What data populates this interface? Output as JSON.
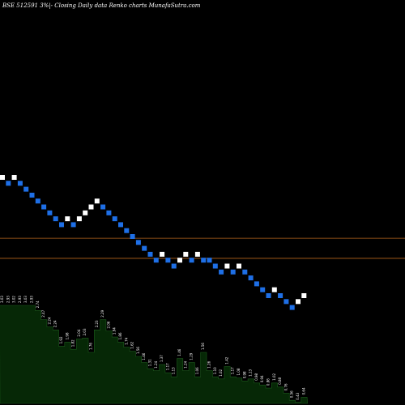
{
  "chart_data": {
    "type": "renko",
    "title": "BSE 512591 3%|- Closing Daily data Renko charts MunafaSutra.com",
    "colors": {
      "background": "#000000",
      "up_brick": "#ffffff",
      "down_brick": "#1e6fe6",
      "reference_line": "#b5651d",
      "volume_area": "#062806"
    },
    "bricks": [
      {
        "i": 0,
        "lvl": 0,
        "dir": "up"
      },
      {
        "i": 1,
        "lvl": 1,
        "dir": "down"
      },
      {
        "i": 2,
        "lvl": 0,
        "dir": "up"
      },
      {
        "i": 3,
        "lvl": 1,
        "dir": "down"
      },
      {
        "i": 4,
        "lvl": 2,
        "dir": "down"
      },
      {
        "i": 5,
        "lvl": 3,
        "dir": "down"
      },
      {
        "i": 6,
        "lvl": 4,
        "dir": "down"
      },
      {
        "i": 7,
        "lvl": 5,
        "dir": "down"
      },
      {
        "i": 8,
        "lvl": 6,
        "dir": "down"
      },
      {
        "i": 9,
        "lvl": 7,
        "dir": "down"
      },
      {
        "i": 10,
        "lvl": 8,
        "dir": "down"
      },
      {
        "i": 11,
        "lvl": 7,
        "dir": "up"
      },
      {
        "i": 12,
        "lvl": 8,
        "dir": "down"
      },
      {
        "i": 13,
        "lvl": 7,
        "dir": "up"
      },
      {
        "i": 14,
        "lvl": 6,
        "dir": "up"
      },
      {
        "i": 15,
        "lvl": 5,
        "dir": "up"
      },
      {
        "i": 16,
        "lvl": 4,
        "dir": "up"
      },
      {
        "i": 17,
        "lvl": 5,
        "dir": "down"
      },
      {
        "i": 18,
        "lvl": 6,
        "dir": "down"
      },
      {
        "i": 19,
        "lvl": 7,
        "dir": "down"
      },
      {
        "i": 20,
        "lvl": 8,
        "dir": "down"
      },
      {
        "i": 21,
        "lvl": 9,
        "dir": "down"
      },
      {
        "i": 22,
        "lvl": 10,
        "dir": "down"
      },
      {
        "i": 23,
        "lvl": 11,
        "dir": "down"
      },
      {
        "i": 24,
        "lvl": 12,
        "dir": "down"
      },
      {
        "i": 25,
        "lvl": 13,
        "dir": "down"
      },
      {
        "i": 26,
        "lvl": 14,
        "dir": "down"
      },
      {
        "i": 27,
        "lvl": 13,
        "dir": "up"
      },
      {
        "i": 28,
        "lvl": 14,
        "dir": "down"
      },
      {
        "i": 29,
        "lvl": 15,
        "dir": "down"
      },
      {
        "i": 30,
        "lvl": 14,
        "dir": "up"
      },
      {
        "i": 31,
        "lvl": 13,
        "dir": "up"
      },
      {
        "i": 32,
        "lvl": 14,
        "dir": "down"
      },
      {
        "i": 33,
        "lvl": 13,
        "dir": "up"
      },
      {
        "i": 34,
        "lvl": 14,
        "dir": "down"
      },
      {
        "i": 35,
        "lvl": 14,
        "dir": "down"
      },
      {
        "i": 36,
        "lvl": 15,
        "dir": "down"
      },
      {
        "i": 37,
        "lvl": 16,
        "dir": "down"
      },
      {
        "i": 38,
        "lvl": 15,
        "dir": "up"
      },
      {
        "i": 39,
        "lvl": 16,
        "dir": "down"
      },
      {
        "i": 40,
        "lvl": 15,
        "dir": "up"
      },
      {
        "i": 41,
        "lvl": 16,
        "dir": "down"
      },
      {
        "i": 42,
        "lvl": 17,
        "dir": "down"
      },
      {
        "i": 43,
        "lvl": 18,
        "dir": "down"
      },
      {
        "i": 44,
        "lvl": 19,
        "dir": "down"
      },
      {
        "i": 45,
        "lvl": 20,
        "dir": "down"
      },
      {
        "i": 46,
        "lvl": 19,
        "dir": "up"
      },
      {
        "i": 47,
        "lvl": 20,
        "dir": "down"
      },
      {
        "i": 48,
        "lvl": 21,
        "dir": "down"
      },
      {
        "i": 49,
        "lvl": 22,
        "dir": "down"
      },
      {
        "i": 50,
        "lvl": 21,
        "dir": "up"
      },
      {
        "i": 51,
        "lvl": 20,
        "dir": "up"
      }
    ],
    "volume_labels": [
      {
        "i": 0,
        "text": "3.03",
        "v": 0.96
      },
      {
        "i": 1,
        "text": "2.93",
        "v": 0.96
      },
      {
        "i": 2,
        "text": "3.02",
        "v": 0.96
      },
      {
        "i": 3,
        "text": "2.93",
        "v": 0.96
      },
      {
        "i": 4,
        "text": "3.03",
        "v": 0.96
      },
      {
        "i": 5,
        "text": "2.93",
        "v": 0.96
      },
      {
        "i": 6,
        "text": "2.74",
        "v": 0.91
      },
      {
        "i": 7,
        "text": "2.47",
        "v": 0.82
      },
      {
        "i": 8,
        "text": "2.24",
        "v": 0.75
      },
      {
        "i": 9,
        "text": "2.24",
        "v": 0.72
      },
      {
        "i": 10,
        "text": "1.92",
        "v": 0.56
      },
      {
        "i": 11,
        "text": "1.98",
        "v": 0.6
      },
      {
        "i": 12,
        "text": "1.82",
        "v": 0.53
      },
      {
        "i": 13,
        "text": "2.04",
        "v": 0.63
      },
      {
        "i": 14,
        "text": "2.03",
        "v": 0.64
      },
      {
        "i": 15,
        "text": "1.76",
        "v": 0.5
      },
      {
        "i": 16,
        "text": "2.23",
        "v": 0.72
      },
      {
        "i": 17,
        "text": "2.29",
        "v": 0.82
      },
      {
        "i": 18,
        "text": "2.06",
        "v": 0.71
      },
      {
        "i": 19,
        "text": "1.94",
        "v": 0.65
      },
      {
        "i": 20,
        "text": "1.86",
        "v": 0.6
      },
      {
        "i": 21,
        "text": "1.74",
        "v": 0.55
      },
      {
        "i": 22,
        "text": "1.62",
        "v": 0.51
      },
      {
        "i": 23,
        "text": "1.56",
        "v": 0.46
      },
      {
        "i": 24,
        "text": "1.46",
        "v": 0.4
      },
      {
        "i": 25,
        "text": "1.31",
        "v": 0.34
      },
      {
        "i": 26,
        "text": "1.24",
        "v": 0.32
      },
      {
        "i": 27,
        "text": "1.37",
        "v": 0.38
      },
      {
        "i": 28,
        "text": "1.17",
        "v": 0.3
      },
      {
        "i": 29,
        "text": "1.13",
        "v": 0.26
      },
      {
        "i": 30,
        "text": "1.46",
        "v": 0.44
      },
      {
        "i": 31,
        "text": "1.24",
        "v": 0.32
      },
      {
        "i": 32,
        "text": "1.29",
        "v": 0.4
      },
      {
        "i": 33,
        "text": "1.06",
        "v": 0.26
      },
      {
        "i": 34,
        "text": "1.56",
        "v": 0.5
      },
      {
        "i": 35,
        "text": "1.26",
        "v": 0.32
      },
      {
        "i": 36,
        "text": "1.10",
        "v": 0.26
      },
      {
        "i": 37,
        "text": "1.02",
        "v": 0.24
      },
      {
        "i": 38,
        "text": "1.42",
        "v": 0.36
      },
      {
        "i": 39,
        "text": "1.17",
        "v": 0.26
      },
      {
        "i": 40,
        "text": "1.08",
        "v": 0.25
      },
      {
        "i": 41,
        "text": "0.98",
        "v": 0.22
      },
      {
        "i": 42,
        "text": "1.13",
        "v": 0.24
      },
      {
        "i": 43,
        "text": "0.98",
        "v": 0.2
      },
      {
        "i": 44,
        "text": "0.94",
        "v": 0.18
      },
      {
        "i": 45,
        "text": "0.86",
        "v": 0.15
      },
      {
        "i": 46,
        "text": "1.02",
        "v": 0.2
      },
      {
        "i": 47,
        "text": "0.88",
        "v": 0.16
      },
      {
        "i": 48,
        "text": "0.76",
        "v": 0.1
      },
      {
        "i": 49,
        "text": "0.56",
        "v": 0.03
      },
      {
        "i": 50,
        "text": "0.43",
        "v": 0.01
      },
      {
        "i": 51,
        "text": "0.64",
        "v": 0.06
      }
    ],
    "reference_levels": [
      10.7,
      14.1
    ]
  }
}
